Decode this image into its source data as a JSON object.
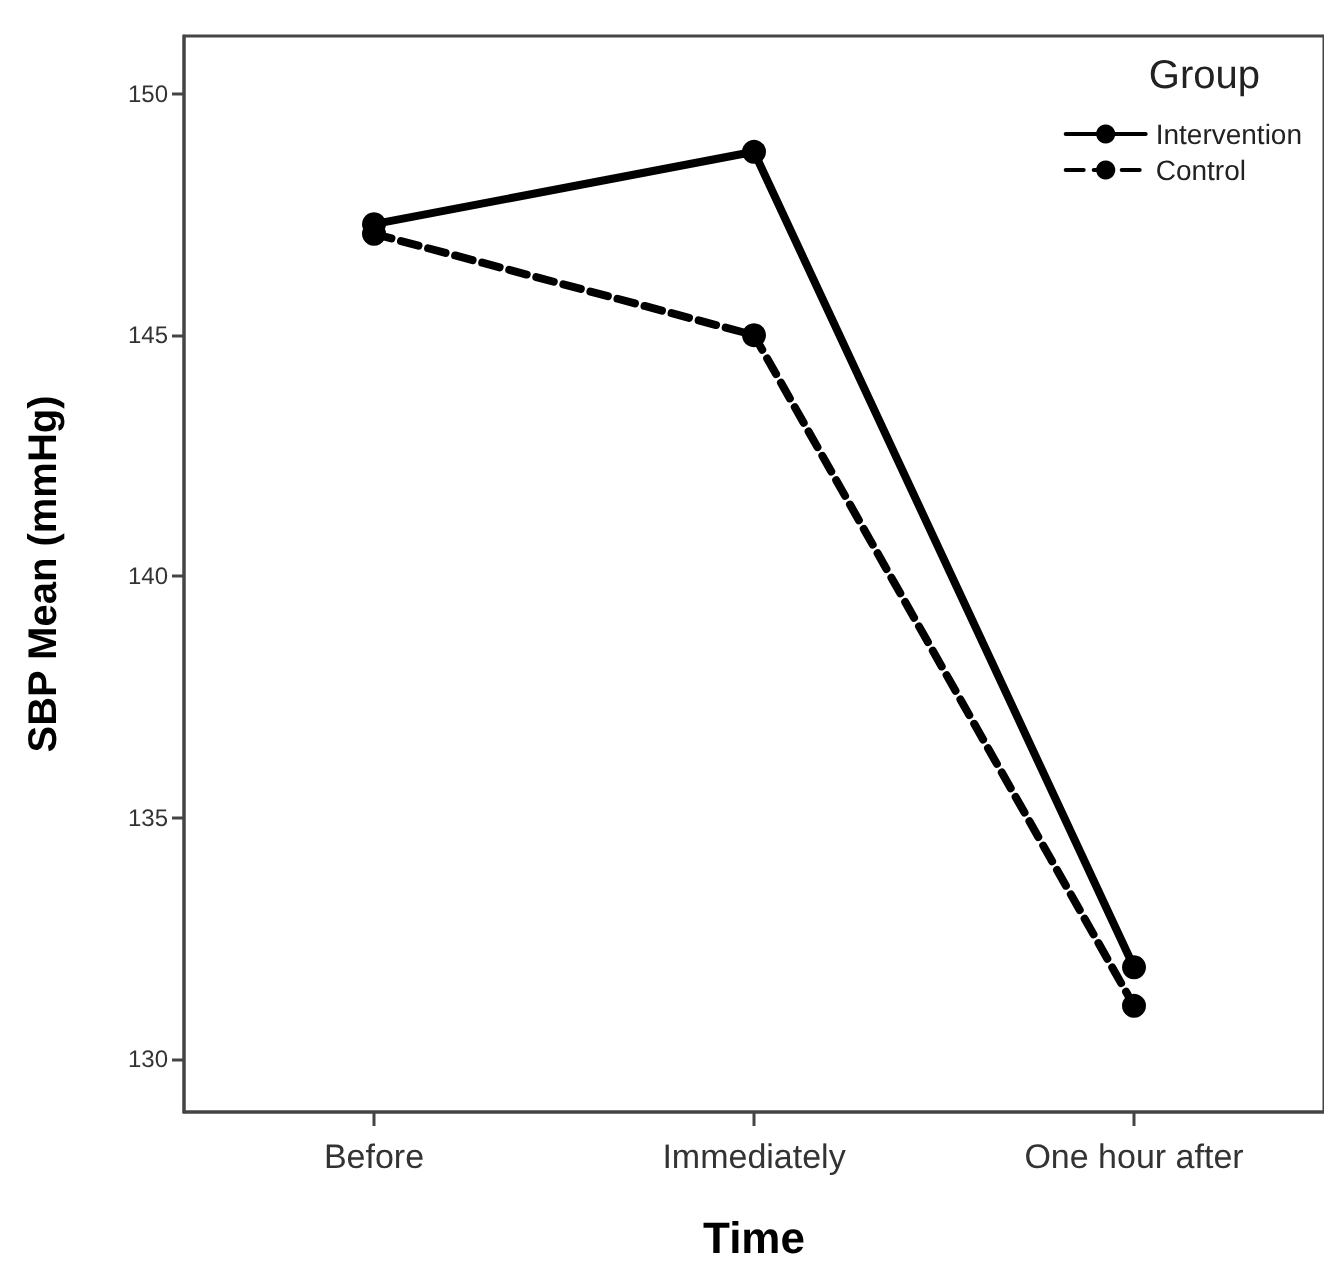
{
  "chart_data": {
    "type": "line",
    "xlabel": "Time",
    "ylabel": "SBP Mean (mmHg)",
    "legend_title": "Group",
    "categories": [
      "Before",
      "Immediately",
      "One hour after"
    ],
    "series": [
      {
        "name": "Intervention",
        "color": "#000000",
        "line_style": "solid",
        "values": [
          147.3,
          148.8,
          131.9
        ]
      },
      {
        "name": "Control",
        "color": "#000000",
        "line_style": "dashed",
        "values": [
          147.1,
          145.0,
          131.1
        ]
      }
    ],
    "ylim": [
      128.9,
      151.2
    ],
    "yticks": [
      130,
      135,
      140,
      145,
      150
    ],
    "grid": false,
    "legend": "top right",
    "marker": "circle"
  }
}
